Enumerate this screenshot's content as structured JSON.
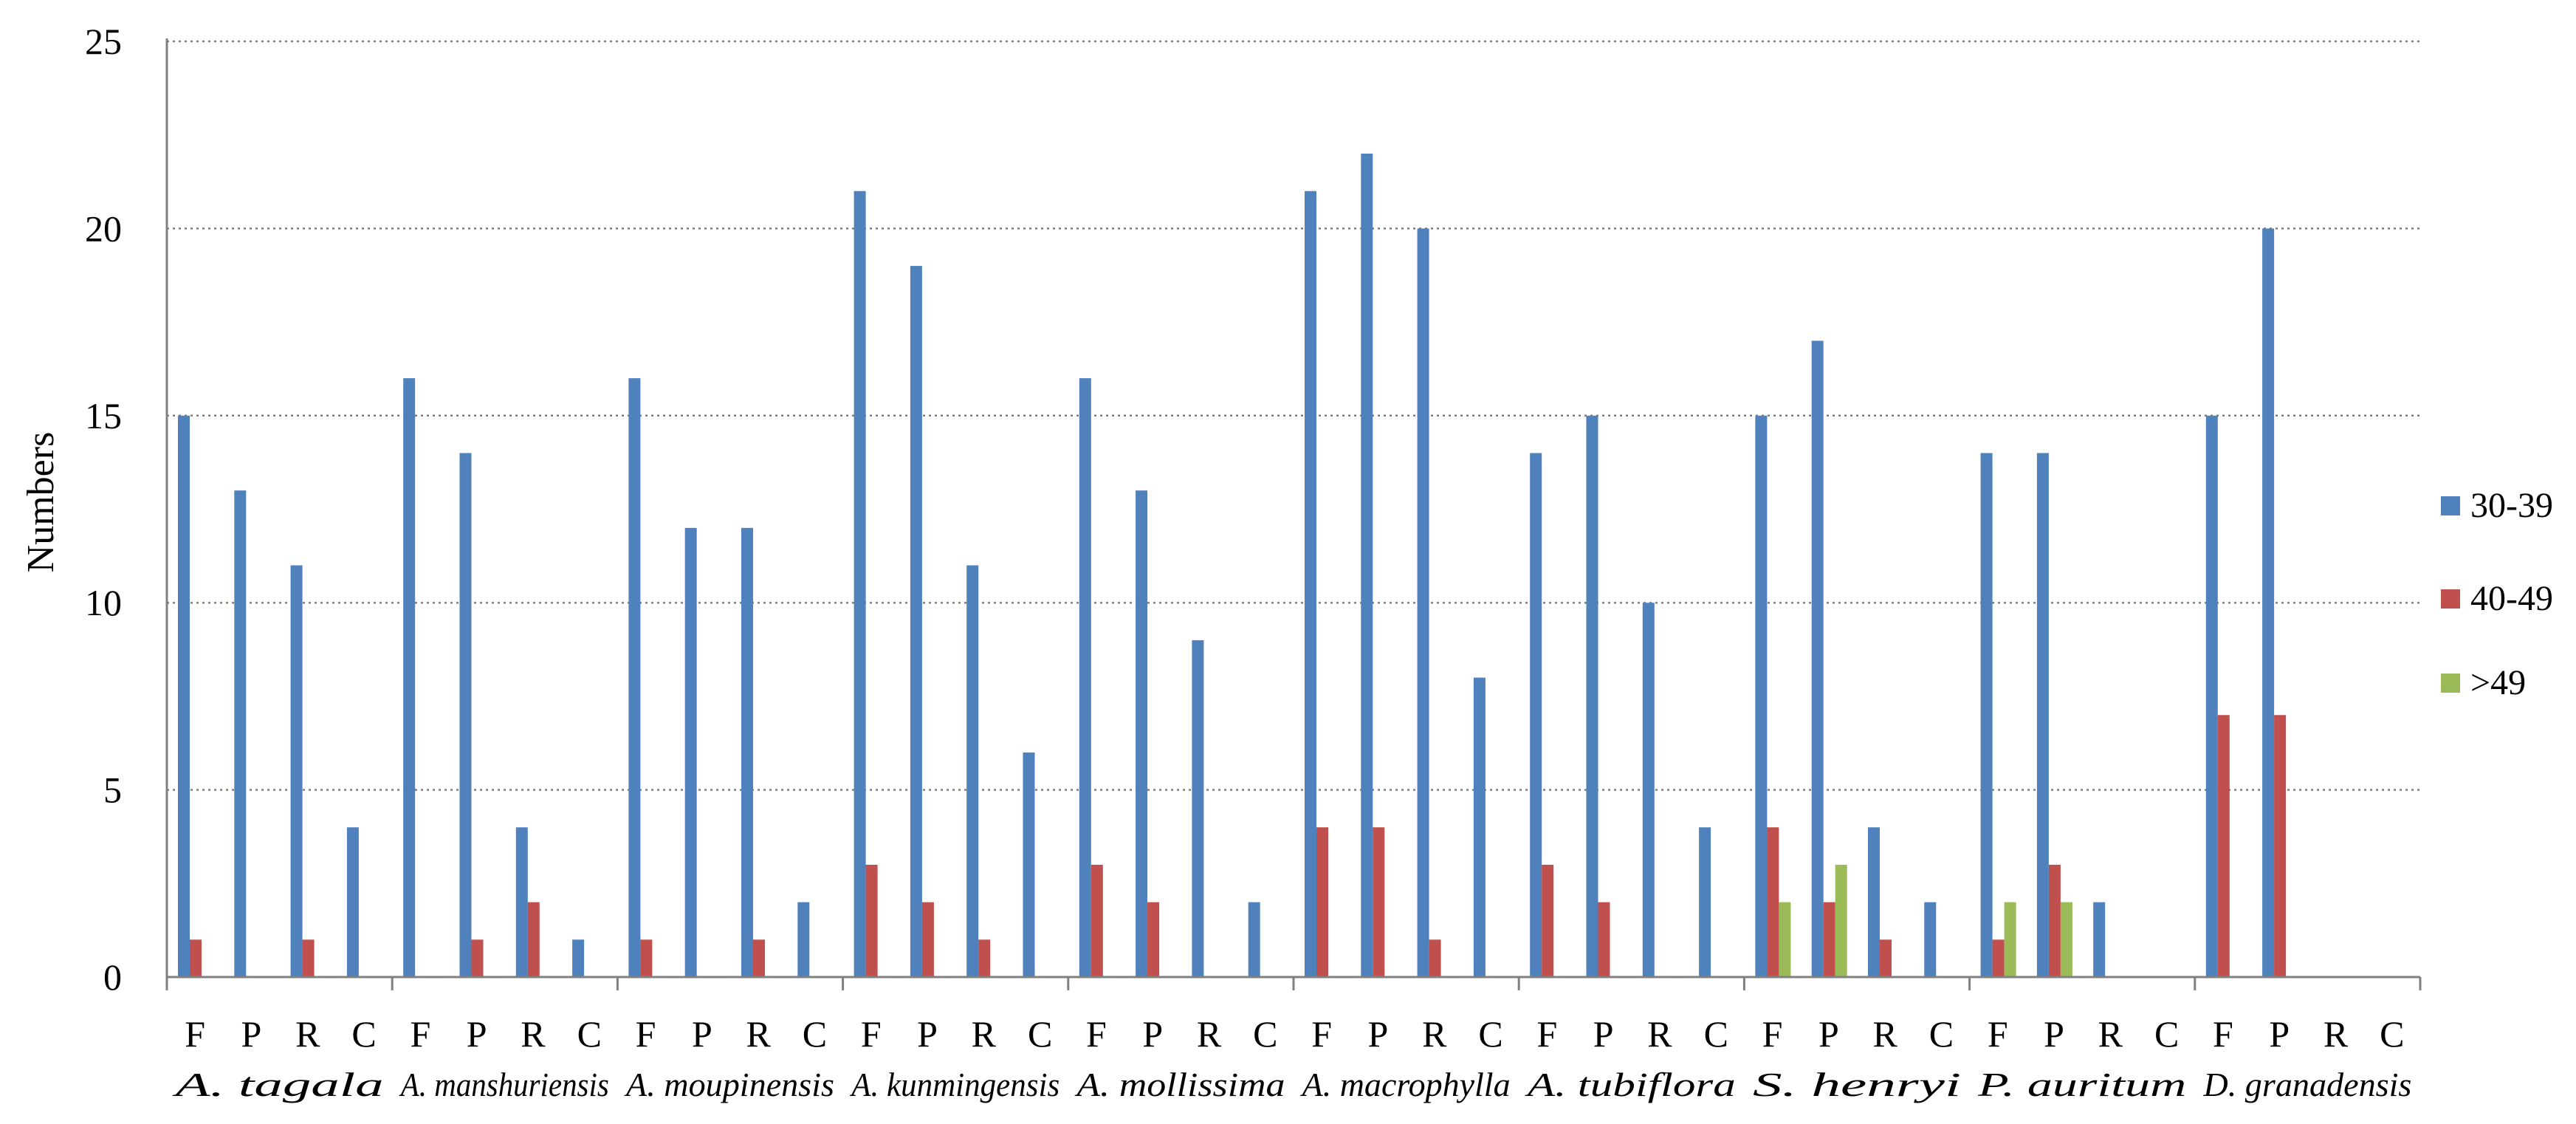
{
  "chart_data": {
    "type": "bar",
    "title": "",
    "xlabel": "",
    "ylabel": "Numbers",
    "ylim": [
      0,
      25
    ],
    "yticks": [
      0,
      5,
      10,
      15,
      20,
      25
    ],
    "grid": "horizontal dotted",
    "legend": "right",
    "sub_categories": [
      "F",
      "P",
      "R",
      "C"
    ],
    "groups": [
      "A. tagala",
      "A. manshuriensis",
      "A. moupinensis",
      "A. kunmingensis",
      "A. mollissima",
      "A. macrophylla",
      "A. tubiflora",
      "S. henryi",
      "P. auritum",
      "D. granadensis"
    ],
    "series": [
      {
        "name": "30-39",
        "color": "#4F81BD",
        "values": [
          15,
          13,
          11,
          4,
          16,
          14,
          4,
          1,
          16,
          12,
          12,
          2,
          21,
          19,
          11,
          6,
          16,
          13,
          9,
          2,
          21,
          22,
          20,
          8,
          14,
          15,
          10,
          4,
          15,
          17,
          4,
          2,
          14,
          14,
          2,
          0,
          15,
          20,
          0,
          0
        ]
      },
      {
        "name": "40-49",
        "color": "#C0504D",
        "values": [
          1,
          0,
          1,
          0,
          0,
          1,
          2,
          0,
          1,
          0,
          1,
          0,
          3,
          2,
          1,
          0,
          3,
          2,
          0,
          0,
          4,
          4,
          1,
          0,
          3,
          2,
          0,
          0,
          4,
          2,
          1,
          0,
          1,
          3,
          0,
          0,
          7,
          7,
          0,
          0
        ]
      },
      {
        "name": ">49",
        "color": "#9BBB59",
        "values": [
          0,
          0,
          0,
          0,
          0,
          0,
          0,
          0,
          0,
          0,
          0,
          0,
          0,
          0,
          0,
          0,
          0,
          0,
          0,
          0,
          0,
          0,
          0,
          0,
          0,
          0,
          0,
          0,
          2,
          3,
          0,
          0,
          2,
          2,
          0,
          0,
          0,
          0,
          0,
          0
        ]
      }
    ]
  }
}
